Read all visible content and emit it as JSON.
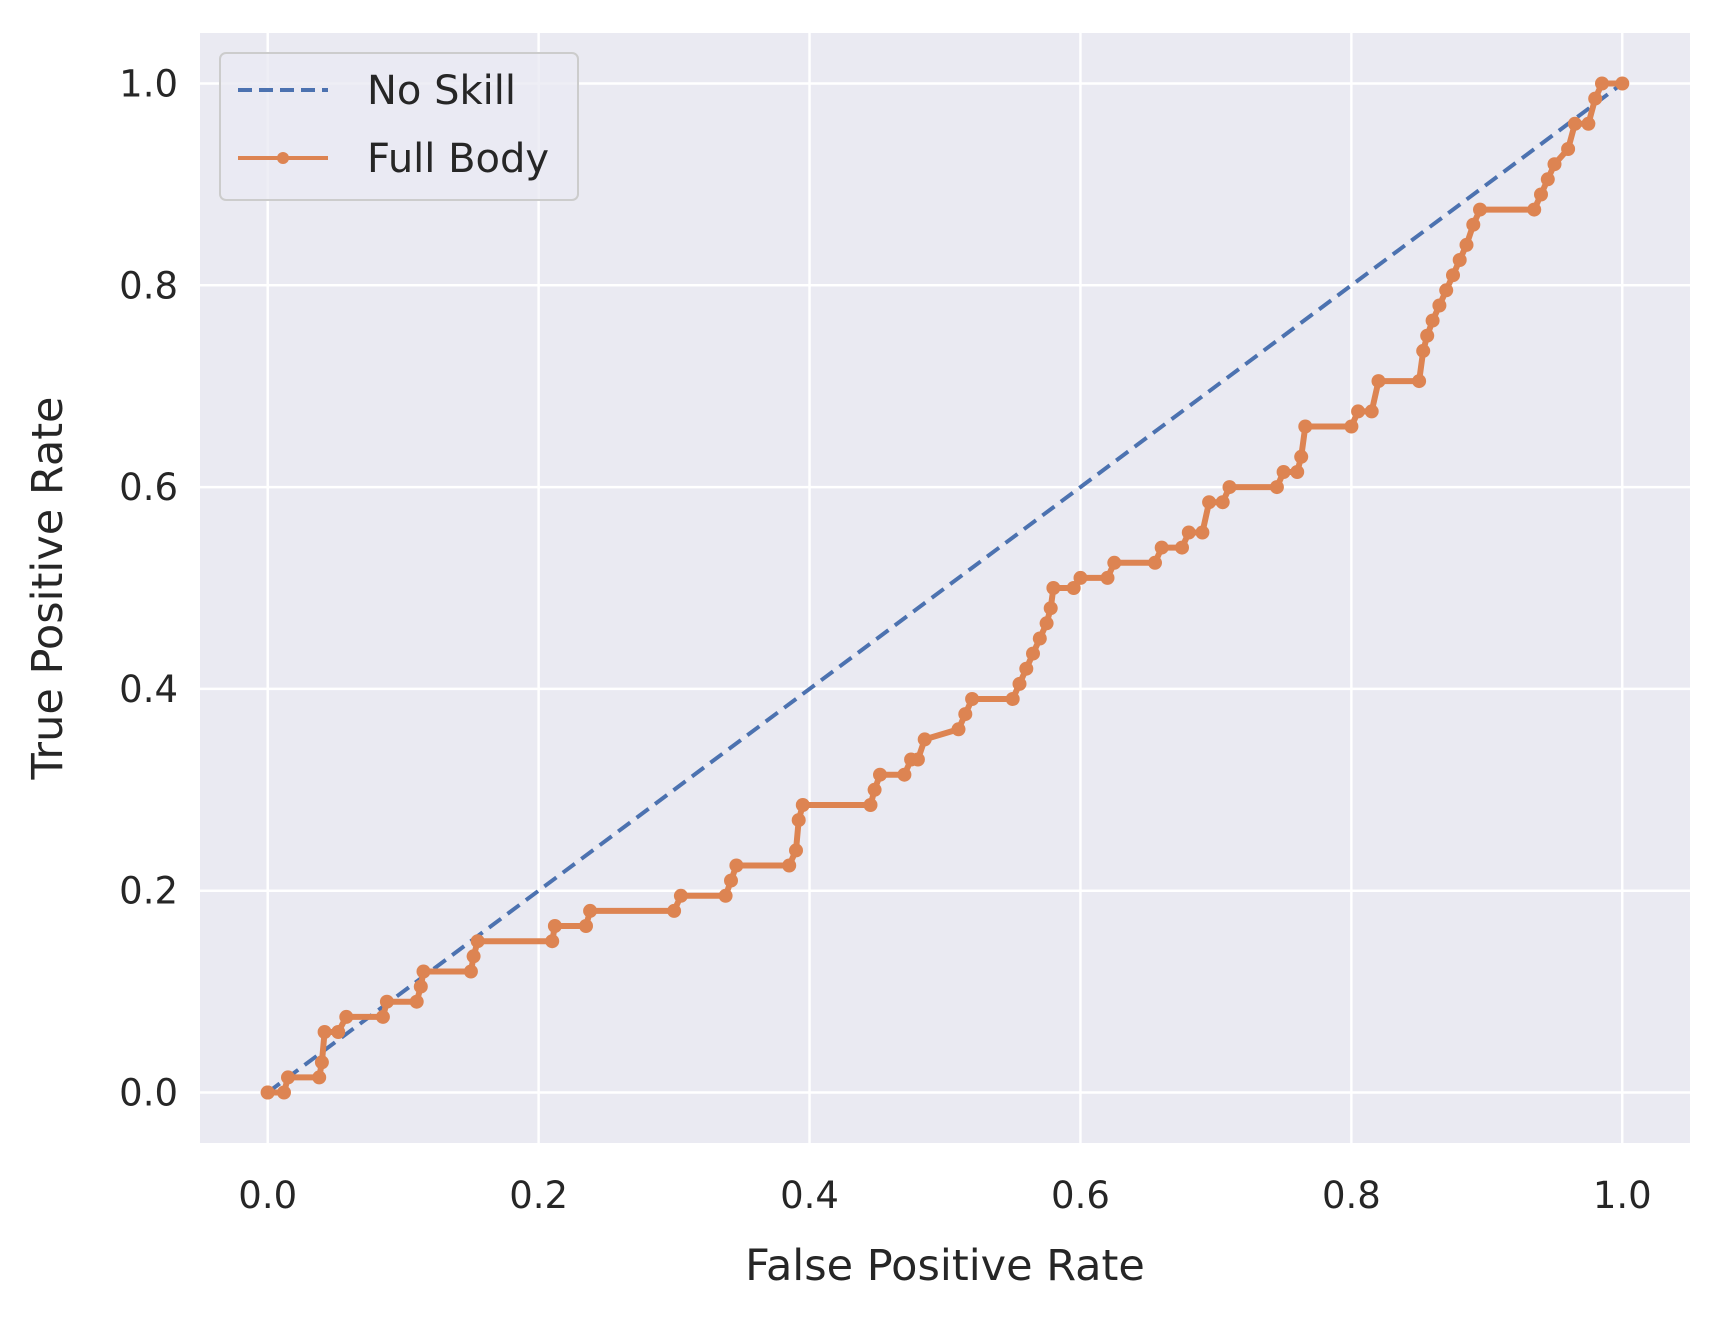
{
  "chart_data": {
    "type": "line",
    "title": "",
    "xlabel": "False Positive Rate",
    "ylabel": "True Positive Rate",
    "xlim": [
      -0.05,
      1.05
    ],
    "ylim": [
      -0.05,
      1.05
    ],
    "xticks": [
      0.0,
      0.2,
      0.4,
      0.6,
      0.8,
      1.0
    ],
    "xtick_labels": [
      "0.0",
      "0.2",
      "0.4",
      "0.6",
      "0.8",
      "1.0"
    ],
    "yticks": [
      0.0,
      0.2,
      0.4,
      0.6,
      0.8,
      1.0
    ],
    "ytick_labels": [
      "0.0",
      "0.2",
      "0.4",
      "0.6",
      "0.8",
      "1.0"
    ],
    "grid": true,
    "legend_position": "upper-left",
    "colors": {
      "background": "#eaeaf2",
      "grid": "#ffffff",
      "no_skill": "#4c72b0",
      "full_body": "#dd8452",
      "text": "#262626"
    },
    "series": [
      {
        "name": "No Skill",
        "style": "dashed",
        "color": "#4c72b0",
        "marker": "none",
        "x": [
          0.0,
          1.0
        ],
        "y": [
          0.0,
          1.0
        ]
      },
      {
        "name": "Full Body",
        "style": "solid",
        "color": "#dd8452",
        "marker": "circle",
        "x": [
          0.0,
          0.0,
          0.012,
          0.015,
          0.038,
          0.04,
          0.042,
          0.052,
          0.058,
          0.085,
          0.088,
          0.11,
          0.113,
          0.115,
          0.15,
          0.152,
          0.155,
          0.21,
          0.212,
          0.235,
          0.238,
          0.3,
          0.305,
          0.338,
          0.342,
          0.346,
          0.385,
          0.39,
          0.392,
          0.395,
          0.445,
          0.448,
          0.452,
          0.47,
          0.475,
          0.48,
          0.485,
          0.51,
          0.515,
          0.52,
          0.55,
          0.555,
          0.56,
          0.565,
          0.57,
          0.575,
          0.578,
          0.58,
          0.595,
          0.6,
          0.62,
          0.625,
          0.655,
          0.66,
          0.675,
          0.68,
          0.69,
          0.695,
          0.705,
          0.71,
          0.745,
          0.75,
          0.76,
          0.763,
          0.766,
          0.8,
          0.805,
          0.815,
          0.82,
          0.85,
          0.853,
          0.856,
          0.86,
          0.865,
          0.87,
          0.875,
          0.88,
          0.885,
          0.89,
          0.895,
          0.935,
          0.94,
          0.945,
          0.95,
          0.96,
          0.965,
          0.975,
          0.98,
          0.985,
          1.0
        ],
        "y": [
          0.0,
          0.0,
          0.0,
          0.015,
          0.015,
          0.03,
          0.06,
          0.06,
          0.075,
          0.075,
          0.09,
          0.09,
          0.105,
          0.12,
          0.12,
          0.135,
          0.15,
          0.15,
          0.165,
          0.165,
          0.18,
          0.18,
          0.195,
          0.195,
          0.21,
          0.225,
          0.225,
          0.24,
          0.27,
          0.285,
          0.285,
          0.3,
          0.315,
          0.315,
          0.33,
          0.33,
          0.35,
          0.36,
          0.375,
          0.39,
          0.39,
          0.405,
          0.42,
          0.435,
          0.45,
          0.465,
          0.48,
          0.5,
          0.5,
          0.51,
          0.51,
          0.525,
          0.525,
          0.54,
          0.54,
          0.555,
          0.555,
          0.585,
          0.585,
          0.6,
          0.6,
          0.615,
          0.615,
          0.63,
          0.66,
          0.66,
          0.675,
          0.675,
          0.705,
          0.705,
          0.735,
          0.75,
          0.765,
          0.78,
          0.795,
          0.81,
          0.825,
          0.84,
          0.86,
          0.875,
          0.875,
          0.89,
          0.905,
          0.92,
          0.935,
          0.96,
          0.96,
          0.985,
          1.0,
          1.0
        ]
      }
    ]
  }
}
